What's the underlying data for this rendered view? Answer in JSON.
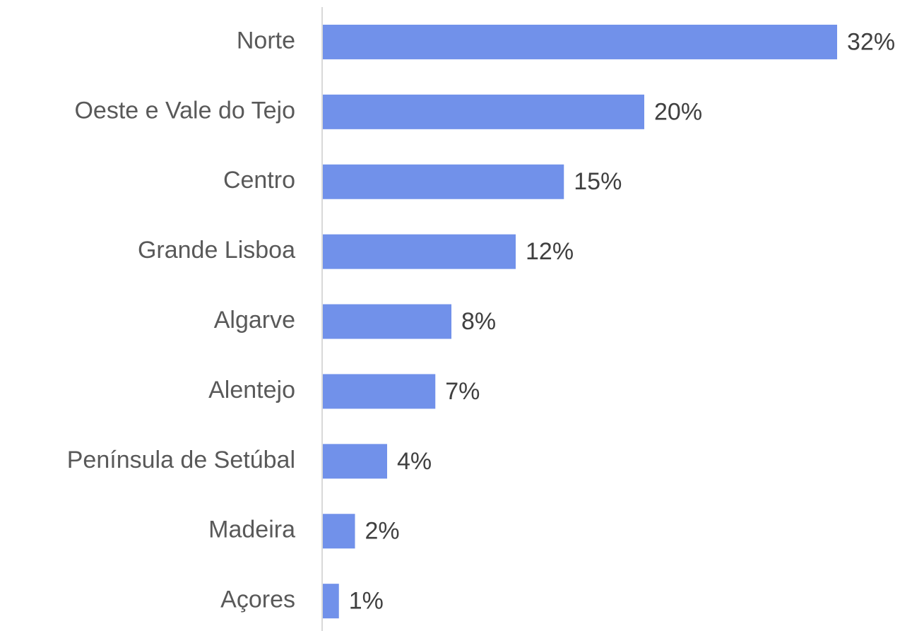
{
  "chart_data": {
    "type": "bar",
    "orientation": "horizontal",
    "categories": [
      "Norte",
      "Oeste e Vale do Tejo",
      "Centro",
      "Grande Lisboa",
      "Algarve",
      "Alentejo",
      "Península de Setúbal",
      "Madeira",
      "Açores"
    ],
    "values": [
      32,
      20,
      15,
      12,
      8,
      7,
      4,
      2,
      1
    ],
    "value_labels": [
      "32%",
      "20%",
      "15%",
      "12%",
      "8%",
      "7%",
      "4%",
      "2%",
      "1%"
    ],
    "color": "#7191ea"
  }
}
